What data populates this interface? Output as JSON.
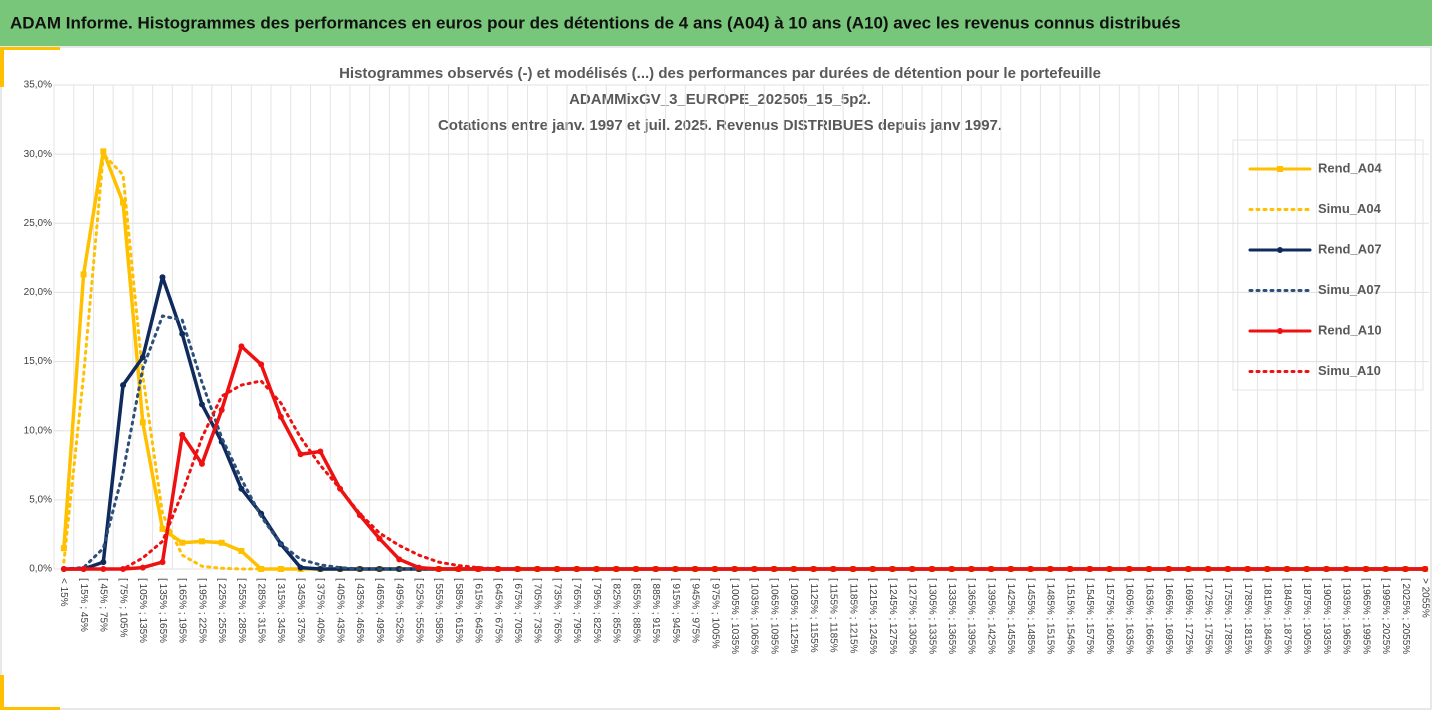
{
  "header": {
    "title": "ADAM Informe. Histogrammes des performances en euros pour des détentions de 4 ans (A04) à 10 ans (A10) avec les revenus connus distribués"
  },
  "chart_data": {
    "type": "line",
    "title": [
      "Histogrammes observés (-) et modélisés (...) des performances par durées de détention pour le portefeuille",
      "ADAMMixGV_3_EUROPE_202505_15_5p2.",
      "Cotations entre janv. 1997 et juil. 2025. Revenus DISTRIBUES depuis janv 1997."
    ],
    "categories": [
      "< 15%",
      "[ 15% ; 45%",
      "[ 45% ; 75%",
      "[ 75% ; 105%",
      "[ 105% ; 135%",
      "[ 135% ; 165%",
      "[ 165% ; 195%",
      "[ 195% ; 225%",
      "[ 225% ; 255%",
      "[ 255% ; 285%",
      "[ 285% ; 315%",
      "[ 315% ; 345%",
      "[ 345% ; 375%",
      "[ 375% ; 405%",
      "[ 405% ; 435%",
      "[ 435% ; 465%",
      "[ 465% ; 495%",
      "[ 495% ; 525%",
      "[ 525% ; 555%",
      "[ 555% ; 585%",
      "[ 585% ; 615%",
      "[ 615% ; 645%",
      "[ 645% ; 675%",
      "[ 675% ; 705%",
      "[ 705% ; 735%",
      "[ 735% ; 765%",
      "[ 765% ; 795%",
      "[ 795% ; 825%",
      "[ 825% ; 855%",
      "[ 855% ; 885%",
      "[ 885% ; 915%",
      "[ 915% ; 945%",
      "[ 945% ; 975%",
      "[ 975% ; 1005%",
      "[ 1005% ; 1035%",
      "[ 1035% ; 1065%",
      "[ 1065% ; 1095%",
      "[ 1095% ; 1125%",
      "[ 1125% ; 1155%",
      "[ 1155% ; 1185%",
      "[ 1185% ; 1215%",
      "[ 1215% ; 1245%",
      "[ 1245% ; 1275%",
      "[ 1275% ; 1305%",
      "[ 1305% ; 1335%",
      "[ 1335% ; 1365%",
      "[ 1365% ; 1395%",
      "[ 1395% ; 1425%",
      "[ 1425% ; 1455%",
      "[ 1455% ; 1485%",
      "[ 1485% ; 1515%",
      "[ 1515% ; 1545%",
      "[ 1545% ; 1575%",
      "[ 1575% ; 1605%",
      "[ 1605% ; 1635%",
      "[ 1635% ; 1665%",
      "[ 1665% ; 1695%",
      "[ 1695% ; 1725%",
      "[ 1725% ; 1755%",
      "[ 1755% ; 1785%",
      "[ 1785% ; 1815%",
      "[ 1815% ; 1845%",
      "[ 1845% ; 1875%",
      "[ 1875% ; 1905%",
      "[ 1905% ; 1935%",
      "[ 1935% ; 1965%",
      "[ 1965% ; 1995%",
      "[ 1995% ; 2025%",
      "[ 2025% ; 2055%",
      "> 2055%"
    ],
    "series": [
      {
        "name": "Rend_A04",
        "color": "#ffc000",
        "line_style": "solid",
        "marker": "square",
        "values": [
          1.5,
          21.3,
          30.2,
          26.5,
          10.6,
          2.9,
          1.9,
          2.0,
          1.9,
          1.3,
          0,
          0,
          0,
          0,
          0,
          0,
          0,
          0,
          0,
          0,
          0,
          0,
          0,
          0,
          0,
          0,
          0,
          0,
          0,
          0,
          0,
          0,
          0,
          0,
          0,
          0,
          0,
          0,
          0,
          0,
          0,
          0,
          0,
          0,
          0,
          0,
          0,
          0,
          0,
          0,
          0,
          0,
          0,
          0,
          0,
          0,
          0,
          0,
          0,
          0,
          0,
          0,
          0,
          0,
          0,
          0,
          0,
          0,
          0,
          0
        ]
      },
      {
        "name": "Simu_A04",
        "color": "#ffc000",
        "line_style": "dotted",
        "marker": "none",
        "values": [
          0.5,
          14,
          30,
          28.5,
          14,
          4,
          1,
          0.2,
          0.05,
          0,
          0,
          0,
          0,
          0,
          0,
          0,
          0,
          0,
          0,
          0,
          0,
          0,
          0,
          0,
          0,
          0,
          0,
          0,
          0,
          0,
          0,
          0,
          0,
          0,
          0,
          0,
          0,
          0,
          0,
          0,
          0,
          0,
          0,
          0,
          0,
          0,
          0,
          0,
          0,
          0,
          0,
          0,
          0,
          0,
          0,
          0,
          0,
          0,
          0,
          0,
          0,
          0,
          0,
          0,
          0,
          0,
          0,
          0,
          0,
          0
        ]
      },
      {
        "name": "Rend_A07",
        "color": "#0f2a5c",
        "line_style": "solid",
        "marker": "circle",
        "values": [
          0,
          0,
          0.5,
          13.3,
          15.3,
          21.1,
          17.0,
          11.9,
          9.2,
          5.8,
          4.0,
          1.8,
          0.1,
          0,
          0,
          0,
          0,
          0,
          0,
          0,
          0,
          0,
          0,
          0,
          0,
          0,
          0,
          0,
          0,
          0,
          0,
          0,
          0,
          0,
          0,
          0,
          0,
          0,
          0,
          0,
          0,
          0,
          0,
          0,
          0,
          0,
          0,
          0,
          0,
          0,
          0,
          0,
          0,
          0,
          0,
          0,
          0,
          0,
          0,
          0,
          0,
          0,
          0,
          0,
          0,
          0,
          0,
          0,
          0,
          0
        ]
      },
      {
        "name": "Simu_A07",
        "color": "#2e4f7a",
        "line_style": "dotted",
        "marker": "none",
        "values": [
          0,
          0.1,
          1.5,
          7,
          14.5,
          18.3,
          18,
          13.5,
          9.5,
          6.5,
          3.8,
          1.8,
          0.7,
          0.3,
          0.1,
          0,
          0,
          0,
          0,
          0,
          0,
          0,
          0,
          0,
          0,
          0,
          0,
          0,
          0,
          0,
          0,
          0,
          0,
          0,
          0,
          0,
          0,
          0,
          0,
          0,
          0,
          0,
          0,
          0,
          0,
          0,
          0,
          0,
          0,
          0,
          0,
          0,
          0,
          0,
          0,
          0,
          0,
          0,
          0,
          0,
          0,
          0,
          0,
          0,
          0,
          0,
          0,
          0,
          0,
          0
        ]
      },
      {
        "name": "Rend_A10",
        "color": "#ee1111",
        "line_style": "solid",
        "marker": "circle",
        "values": [
          0,
          0,
          0,
          0,
          0.1,
          0.5,
          9.7,
          7.6,
          11.5,
          16.1,
          14.8,
          11.0,
          8.3,
          8.5,
          5.8,
          3.9,
          2.2,
          0.7,
          0.1,
          0,
          0,
          0,
          0,
          0,
          0,
          0,
          0,
          0,
          0,
          0,
          0,
          0,
          0,
          0,
          0,
          0,
          0,
          0,
          0,
          0,
          0,
          0,
          0,
          0,
          0,
          0,
          0,
          0,
          0,
          0,
          0,
          0,
          0,
          0,
          0,
          0,
          0,
          0,
          0,
          0,
          0,
          0,
          0,
          0,
          0,
          0,
          0,
          0,
          0,
          0
        ]
      },
      {
        "name": "Simu_A10",
        "color": "#ee1111",
        "line_style": "dotted",
        "marker": "none",
        "values": [
          0,
          0,
          0,
          0,
          0.8,
          2,
          5.5,
          9.5,
          12.5,
          13.3,
          13.6,
          12,
          9.5,
          7.5,
          5.8,
          4,
          2.6,
          1.7,
          1.0,
          0.5,
          0.25,
          0.1,
          0,
          0,
          0,
          0,
          0,
          0,
          0,
          0,
          0,
          0,
          0,
          0,
          0,
          0,
          0,
          0,
          0,
          0,
          0,
          0,
          0,
          0,
          0,
          0,
          0,
          0,
          0,
          0,
          0,
          0,
          0,
          0,
          0,
          0,
          0,
          0,
          0,
          0,
          0,
          0,
          0,
          0,
          0,
          0,
          0,
          0,
          0,
          0
        ]
      }
    ],
    "ylim": [
      0,
      35
    ],
    "yticks": [
      {
        "value": 0,
        "label": "0,0%"
      },
      {
        "value": 5,
        "label": "5,0%"
      },
      {
        "value": 10,
        "label": "10,0%"
      },
      {
        "value": 15,
        "label": "15,0%"
      },
      {
        "value": 20,
        "label": "20,0%"
      },
      {
        "value": 25,
        "label": "25,0%"
      },
      {
        "value": 30,
        "label": "30,0%"
      },
      {
        "value": 35,
        "label": "35,0%"
      }
    ],
    "grid": true,
    "legend": "right"
  }
}
